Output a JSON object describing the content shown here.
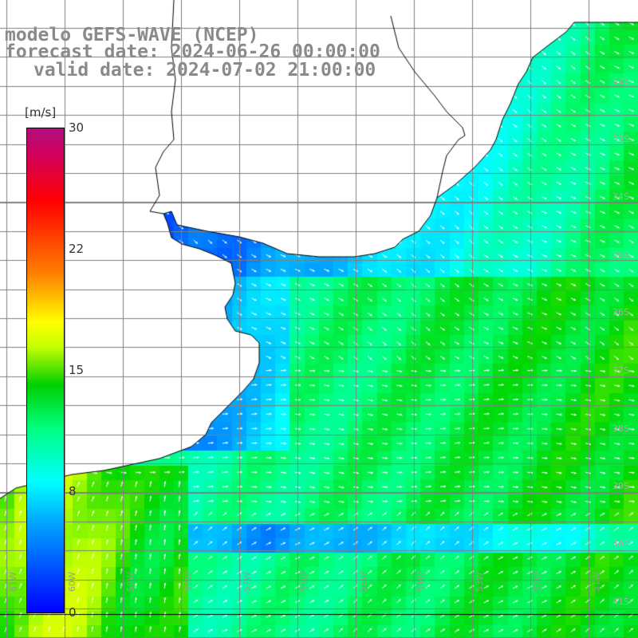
{
  "title": {
    "line1": "modelo GEFS-WAVE (NCEP)",
    "line2": "forecast date: 2024-06-26 00:00:00",
    "line3": "valid date: 2024-07-02 21:00:00"
  },
  "colorbar": {
    "unit": "[m/s]",
    "ticks": [
      {
        "label": "30",
        "value": 30
      },
      {
        "label": "22",
        "value": 22
      },
      {
        "label": "15",
        "value": 15
      },
      {
        "label": "8",
        "value": 8
      },
      {
        "label": "0",
        "value": 0
      }
    ],
    "min": 0,
    "max": 30
  },
  "map": {
    "variable": "wind speed with direction arrows",
    "lon_labels": [
      "61W",
      "60W",
      "59W",
      "58W",
      "57W",
      "56W",
      "55W",
      "54W",
      "53W",
      "52W",
      "51W"
    ],
    "lat_labels": [
      "32S",
      "33S",
      "34S",
      "35S",
      "36S",
      "37S",
      "38S",
      "39S",
      "40S",
      "41S"
    ],
    "colors": {
      "land": "#ffffff",
      "grid": "#808080",
      "coast": "#000000",
      "arrow": "#ffffff",
      "title": "#8a8a8a"
    }
  }
}
